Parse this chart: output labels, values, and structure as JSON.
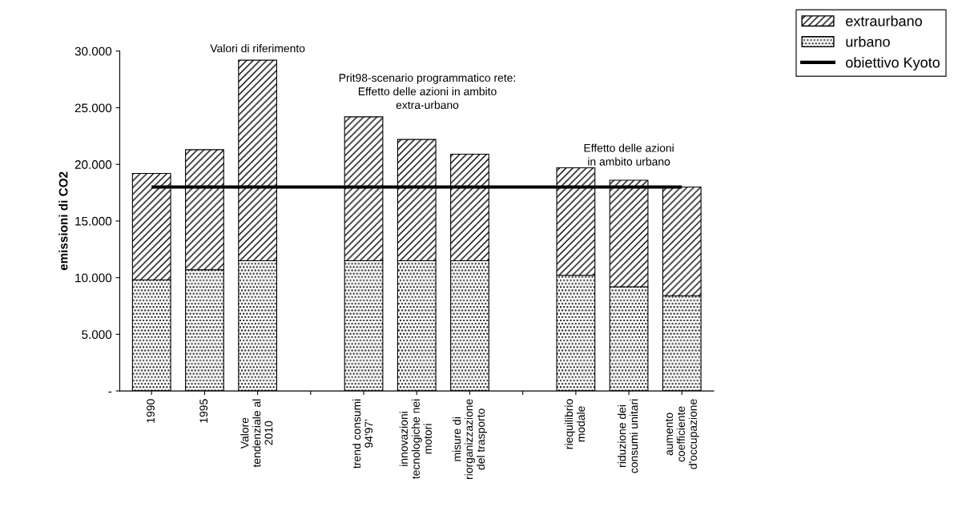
{
  "chart_data": {
    "type": "bar",
    "stacked": true,
    "categories": [
      "1990",
      "1995",
      "Valore\ntendenziale al\n2010",
      null,
      "trend consumi\n94'97'",
      "innovazioni\ntecnologiche nei\nmotori",
      "misure di\nriorganizzazione\ndel trasporto",
      null,
      "riequilibrio\nmodale",
      "riduzione dei\nconsumi unitari",
      "aumento\ncoefficiente\nd'occupazione"
    ],
    "series": [
      {
        "name": "urbano",
        "color": "#000000",
        "values": [
          9800,
          10700,
          11500,
          null,
          11500,
          11500,
          11500,
          null,
          10200,
          9200,
          8400
        ]
      },
      {
        "name": "extraurbano",
        "color": "#000000",
        "values": [
          9400,
          10600,
          17700,
          null,
          12700,
          10700,
          9400,
          null,
          9500,
          9400,
          9600
        ]
      },
      {
        "name": "obiettivo Kyoto",
        "type": "line",
        "color": "#000000",
        "values": [
          18000,
          18000,
          18000,
          18000,
          18000,
          18000,
          18000,
          18000,
          18000,
          18000,
          18000
        ]
      }
    ],
    "ylabel": "emissioni di CO2",
    "ylim": [
      0,
      30000
    ],
    "yticks": [
      {
        "value": 0,
        "label": "-"
      },
      {
        "value": 5000,
        "label": "5.000"
      },
      {
        "value": 10000,
        "label": "10.000"
      },
      {
        "value": 15000,
        "label": "15.000"
      },
      {
        "value": 20000,
        "label": "20.000"
      },
      {
        "value": 25000,
        "label": "25.000"
      },
      {
        "value": 30000,
        "label": "30.000"
      }
    ],
    "annotations": [
      "Valori di riferimento",
      "Prit98-scenario programmatico rete:\nEffetto delle azioni in ambito\nextra-urbano",
      "Effetto delle azioni\nin ambito urbano"
    ],
    "legend": "top right"
  }
}
